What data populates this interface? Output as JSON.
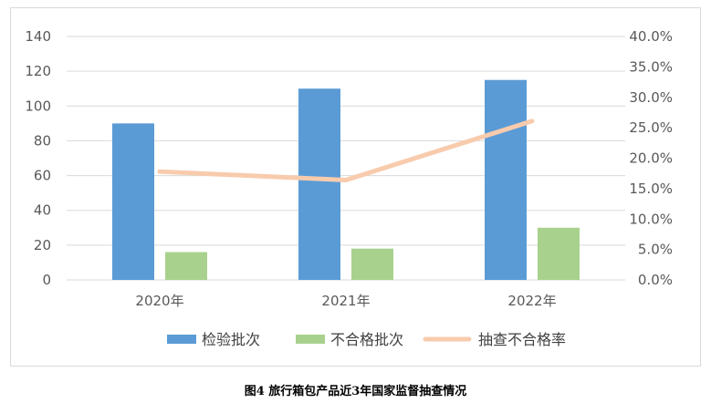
{
  "caption": "图4 旅行箱包产品近3年国家监督抽查情况",
  "colors": {
    "inspected_bar": "#5b9bd5",
    "failed_bar": "#a9d18e",
    "rate_line": "#f8cbad",
    "grid": "#d9d9d9",
    "axis_text": "#595959"
  },
  "chart_data": {
    "type": "bar",
    "categories": [
      "2020年",
      "2021年",
      "2022年"
    ],
    "series": [
      {
        "name": "检验批次",
        "type": "bar",
        "axis": "left",
        "values": [
          90,
          110,
          115
        ]
      },
      {
        "name": "不合格批次",
        "type": "bar",
        "axis": "left",
        "values": [
          16,
          18,
          30
        ]
      },
      {
        "name": "抽查不合格率",
        "type": "line",
        "axis": "right",
        "values": [
          0.178,
          0.164,
          0.261
        ]
      }
    ],
    "y_left": {
      "min": 0,
      "max": 140,
      "ticks": [
        "0",
        "20",
        "40",
        "60",
        "80",
        "100",
        "120",
        "140"
      ]
    },
    "y_right": {
      "min": 0,
      "max": 0.4,
      "ticks": [
        "0.0%",
        "5.0%",
        "10.0%",
        "15.0%",
        "20.0%",
        "25.0%",
        "30.0%",
        "35.0%",
        "40.0%"
      ]
    },
    "grid": true,
    "legend_position": "bottom"
  }
}
